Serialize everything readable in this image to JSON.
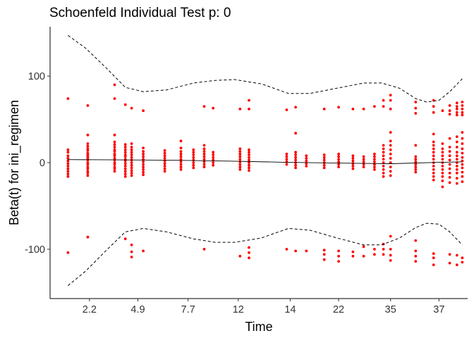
{
  "chart_data": {
    "type": "scatter",
    "title": "Schoenfeld Individual Test p: 0",
    "xlabel": "Time",
    "ylabel": "Beta(t) for ini_regimen",
    "ylim": [
      -157,
      157
    ],
    "y_ticks": [
      -100,
      0,
      100
    ],
    "x_ticks": [
      "2.2",
      "4.9",
      "7.7",
      "12",
      "14",
      "22",
      "35",
      "37"
    ],
    "x_tick_positions": [
      2.2,
      4.9,
      7.7,
      10.5,
      13.4,
      16.1,
      19.0,
      21.7
    ],
    "xlim": [
      0,
      23.3
    ],
    "grid": false,
    "legend": "none",
    "colors": {
      "points": "#ff0000",
      "fit": "#000000",
      "band": "#000000"
    },
    "series": [
      {
        "kind": "points",
        "groups": [
          {
            "x": 1.0,
            "y": [
              74,
              15,
              12,
              8,
              5,
              2,
              -1,
              -4,
              -7,
              -10,
              -13,
              -16,
              -104
            ]
          },
          {
            "x": 2.1,
            "y": [
              66,
              32,
              22,
              19,
              16,
              14,
              11,
              9,
              7,
              5,
              3,
              0,
              -2,
              -5,
              -7,
              -10,
              -12,
              -15,
              -86
            ]
          },
          {
            "x": 3.6,
            "y": [
              90,
              74,
              32,
              24,
              21,
              18,
              15,
              13,
              10,
              8,
              5,
              3,
              0,
              -2,
              -5,
              -7,
              -10
            ]
          },
          {
            "x": 4.2,
            "y": [
              67,
              21,
              18,
              15,
              12,
              9,
              7,
              4,
              2,
              -1,
              -4,
              -7,
              -10,
              -13,
              -16,
              -88
            ]
          },
          {
            "x": 4.55,
            "y": [
              63,
              22,
              18,
              15,
              12,
              9,
              6,
              3,
              0,
              -3,
              -6,
              -9,
              -12,
              -15,
              -95,
              -103,
              -109
            ]
          },
          {
            "x": 5.2,
            "y": [
              60,
              17,
              13,
              10,
              7,
              4,
              1,
              -2,
              -5,
              -8,
              -11,
              -14,
              -102
            ]
          },
          {
            "x": 6.4,
            "y": [
              14,
              11,
              8,
              5,
              2,
              -1,
              -4,
              -7,
              -10
            ]
          },
          {
            "x": 7.3,
            "y": [
              25,
              17,
              13,
              10,
              7,
              4,
              1,
              -2,
              -5,
              -8
            ]
          },
          {
            "x": 8.0,
            "y": [
              15,
              12,
              9,
              6,
              3,
              0,
              -3,
              -6
            ]
          },
          {
            "x": 8.6,
            "y": [
              65,
              20,
              16,
              13,
              10,
              7,
              4,
              1,
              -2,
              -5,
              -100
            ]
          },
          {
            "x": 9.1,
            "y": [
              63,
              12,
              9,
              6,
              3,
              0,
              -3
            ]
          },
          {
            "x": 10.6,
            "y": [
              62,
              16,
              13,
              10,
              7,
              4,
              1,
              -2,
              -5,
              -8,
              -108
            ]
          },
          {
            "x": 11.1,
            "y": [
              72,
              62,
              15,
              12,
              9,
              6,
              3,
              0,
              -3,
              -6,
              -9,
              -98,
              -104,
              -110
            ]
          },
          {
            "x": 13.2,
            "y": [
              61,
              10,
              7,
              4,
              1,
              -2,
              -100
            ]
          },
          {
            "x": 13.7,
            "y": [
              64,
              34,
              12,
              9,
              6,
              3,
              0,
              -3,
              -6,
              -102
            ]
          },
          {
            "x": 14.3,
            "y": [
              8,
              5,
              2,
              -1,
              -4,
              -102
            ]
          },
          {
            "x": 15.3,
            "y": [
              62,
              9,
              6,
              3,
              0,
              -3,
              -6,
              -101,
              -106,
              -112
            ]
          },
          {
            "x": 16.1,
            "y": [
              64,
              10,
              7,
              4,
              1,
              -2,
              -5,
              -102,
              -108,
              -114
            ]
          },
          {
            "x": 16.9,
            "y": [
              62,
              8,
              5,
              2,
              -1,
              -4,
              -7,
              -103,
              -108
            ]
          },
          {
            "x": 17.5,
            "y": [
              62,
              7,
              4,
              1,
              -2,
              -5,
              -97,
              -108
            ]
          },
          {
            "x": 18.1,
            "y": [
              65,
              10,
              7,
              4,
              1,
              -2,
              -5,
              -8,
              -100,
              -106
            ]
          },
          {
            "x": 18.6,
            "y": [
              72,
              65,
              20,
              16,
              12,
              8,
              4,
              0,
              -4,
              -8,
              -12,
              -16,
              -94,
              -100,
              -106
            ]
          },
          {
            "x": 19.0,
            "y": [
              78,
              72,
              62,
              35,
              25,
              20,
              15,
              10,
              5,
              0,
              -5,
              -10,
              -15,
              -85,
              -100,
              -107,
              -113
            ]
          },
          {
            "x": 20.4,
            "y": [
              70,
              63,
              57,
              20,
              7,
              4,
              1,
              -2,
              -5,
              -8,
              -11,
              -90,
              -102,
              -108,
              -114
            ]
          },
          {
            "x": 21.4,
            "y": [
              72,
              65,
              58,
              33,
              24,
              20,
              16,
              12,
              8,
              4,
              0,
              -4,
              -8,
              -12,
              -16,
              -20,
              -105,
              -110,
              -118
            ]
          },
          {
            "x": 21.9,
            "y": [
              60,
              22,
              16,
              12,
              8,
              4,
              0,
              -4,
              -8,
              -12,
              -16,
              -21,
              -28
            ]
          },
          {
            "x": 22.3,
            "y": [
              66,
              60,
              56,
              28,
              18,
              13,
              8,
              3,
              -2,
              -7,
              -12,
              -17,
              -23,
              -106,
              -116
            ]
          },
          {
            "x": 22.7,
            "y": [
              69,
              65,
              62,
              58,
              55,
              30,
              24,
              18,
              12,
              8,
              4,
              0,
              -4,
              -8,
              -12,
              -18,
              -24,
              -107,
              -118
            ]
          },
          {
            "x": 23.0,
            "y": [
              70,
              66,
              62,
              58,
              55,
              35,
              28,
              22,
              16,
              11,
              6,
              2,
              -2,
              -6,
              -11,
              -16,
              -22,
              -110,
              -115
            ]
          }
        ]
      },
      {
        "kind": "fit",
        "x": [
          1.0,
          4.0,
          7.0,
          10.0,
          13.0,
          16.0,
          19.0,
          21.7,
          23.0
        ],
        "y": [
          3.5,
          3.2,
          2.8,
          1.8,
          0.5,
          -0.5,
          -1.2,
          0.3,
          1.0
        ]
      },
      {
        "kind": "band-upper",
        "x": [
          1.0,
          2.0,
          3.2,
          4.2,
          5.2,
          6.5,
          8.0,
          9.2,
          10.3,
          11.8,
          13.3,
          14.5,
          16.0,
          17.5,
          18.5,
          19.5,
          20.4,
          21.0,
          21.7,
          22.3,
          23.0
        ],
        "y": [
          147,
          132,
          108,
          87,
          82,
          84,
          92,
          95,
          96,
          91,
          80,
          80,
          86,
          92,
          92,
          86,
          74,
          70,
          72,
          82,
          97
        ]
      },
      {
        "kind": "band-lower",
        "x": [
          1.0,
          2.0,
          3.2,
          4.2,
          5.2,
          6.5,
          8.0,
          9.2,
          10.3,
          11.8,
          13.3,
          14.5,
          16.0,
          17.5,
          18.5,
          19.5,
          20.4,
          21.0,
          21.7,
          22.3,
          23.0
        ],
        "y": [
          -142,
          -125,
          -100,
          -80,
          -76,
          -80,
          -88,
          -92,
          -92,
          -87,
          -76,
          -78,
          -87,
          -95,
          -95,
          -87,
          -75,
          -70,
          -71,
          -80,
          -95
        ]
      }
    ]
  }
}
